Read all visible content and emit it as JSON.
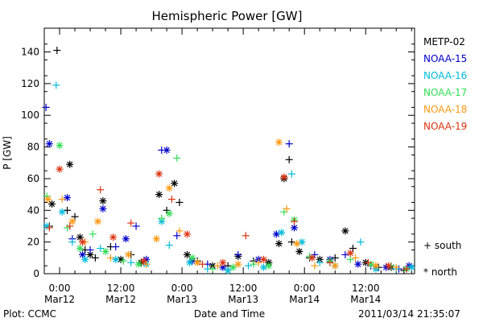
{
  "chart_data": {
    "type": "scatter",
    "title": "Hemispheric Power [GW]",
    "ylabel": "P [GW]",
    "xlabel": "Date and Time",
    "ylim": [
      0,
      155
    ],
    "xlim": [
      "2011-03-11 21:00",
      "2011-03-14 21:35"
    ],
    "yticks": [
      0,
      20,
      40,
      60,
      80,
      100,
      120,
      140
    ],
    "xticks": [
      {
        "time": "2011-03-12 00:00",
        "label": [
          "0:00",
          "Mar12"
        ]
      },
      {
        "time": "2011-03-12 12:00",
        "label": [
          "12:00",
          "Mar12"
        ]
      },
      {
        "time": "2011-03-13 00:00",
        "label": [
          "0:00",
          "Mar13"
        ]
      },
      {
        "time": "2011-03-13 12:00",
        "label": [
          "12:00",
          "Mar13"
        ]
      },
      {
        "time": "2011-03-14 00:00",
        "label": [
          "0:00",
          "Mar14"
        ]
      },
      {
        "time": "2011-03-14 12:00",
        "label": [
          "12:00",
          "Mar14"
        ]
      }
    ],
    "marker_legend": {
      "south": "+ south",
      "north": "* north"
    },
    "series": [
      {
        "name": "METP-02",
        "color": "#000000",
        "points": [
          {
            "t": "2011-03-11 22:00",
            "v": 30,
            "m": "+"
          },
          {
            "t": "2011-03-11 22:30",
            "v": 44,
            "m": "*"
          },
          {
            "t": "2011-03-11 23:30",
            "v": 141,
            "m": "+"
          },
          {
            "t": "2011-03-12 01:30",
            "v": 40,
            "m": "+"
          },
          {
            "t": "2011-03-12 02:00",
            "v": 69,
            "m": "*"
          },
          {
            "t": "2011-03-12 03:00",
            "v": 36,
            "m": "+"
          },
          {
            "t": "2011-03-12 04:00",
            "v": 23,
            "m": "*"
          },
          {
            "t": "2011-03-12 05:00",
            "v": 15,
            "m": "+"
          },
          {
            "t": "2011-03-12 06:00",
            "v": 12,
            "m": "*"
          },
          {
            "t": "2011-03-12 07:00",
            "v": 10,
            "m": "+"
          },
          {
            "t": "2011-03-12 08:30",
            "v": 46,
            "m": "*"
          },
          {
            "t": "2011-03-12 10:00",
            "v": 17,
            "m": "+"
          },
          {
            "t": "2011-03-12 12:00",
            "v": 9,
            "m": "*"
          },
          {
            "t": "2011-03-12 14:00",
            "v": 12,
            "m": "+"
          },
          {
            "t": "2011-03-12 16:00",
            "v": 7,
            "m": "*"
          },
          {
            "t": "2011-03-12 19:30",
            "v": 50,
            "m": "*"
          },
          {
            "t": "2011-03-12 21:00",
            "v": 40,
            "m": "+"
          },
          {
            "t": "2011-03-12 22:30",
            "v": 57,
            "m": "*"
          },
          {
            "t": "2011-03-12 23:30",
            "v": 45,
            "m": "+"
          },
          {
            "t": "2011-03-13 01:00",
            "v": 12,
            "m": "*"
          },
          {
            "t": "2011-03-13 03:00",
            "v": 8,
            "m": "+"
          },
          {
            "t": "2011-03-13 06:00",
            "v": 5,
            "m": "*"
          },
          {
            "t": "2011-03-13 09:00",
            "v": 5,
            "m": "+"
          },
          {
            "t": "2011-03-13 11:00",
            "v": 11,
            "m": "*"
          },
          {
            "t": "2011-03-13 14:00",
            "v": 8,
            "m": "+"
          },
          {
            "t": "2011-03-13 17:00",
            "v": 7,
            "m": "*"
          },
          {
            "t": "2011-03-13 19:00",
            "v": 19,
            "m": "*"
          },
          {
            "t": "2011-03-13 20:00",
            "v": 60,
            "m": "*"
          },
          {
            "t": "2011-03-13 21:00",
            "v": 72,
            "m": "+"
          },
          {
            "t": "2011-03-13 21:30",
            "v": 20,
            "m": "+"
          },
          {
            "t": "2011-03-13 23:00",
            "v": 14,
            "m": "*"
          },
          {
            "t": "2011-03-14 01:00",
            "v": 10,
            "m": "+"
          },
          {
            "t": "2011-03-14 03:00",
            "v": 9,
            "m": "*"
          },
          {
            "t": "2011-03-14 06:00",
            "v": 10,
            "m": "+"
          },
          {
            "t": "2011-03-14 08:00",
            "v": 27,
            "m": "*"
          },
          {
            "t": "2011-03-14 09:30",
            "v": 16,
            "m": "+"
          },
          {
            "t": "2011-03-14 12:00",
            "v": 7,
            "m": "*"
          },
          {
            "t": "2011-03-14 14:30",
            "v": 4,
            "m": "+"
          },
          {
            "t": "2011-03-14 17:00",
            "v": 4,
            "m": "*"
          },
          {
            "t": "2011-03-14 19:30",
            "v": 2,
            "m": "+"
          }
        ]
      },
      {
        "name": "NOAA-15",
        "color": "#0000cc",
        "points": [
          {
            "t": "2011-03-11 21:20",
            "v": 105,
            "m": "+"
          },
          {
            "t": "2011-03-11 22:00",
            "v": 82,
            "m": "*"
          },
          {
            "t": "2011-03-12 01:30",
            "v": 48,
            "m": "*"
          },
          {
            "t": "2011-03-12 02:30",
            "v": 22,
            "m": "+"
          },
          {
            "t": "2011-03-12 04:30",
            "v": 12,
            "m": "*"
          },
          {
            "t": "2011-03-12 06:00",
            "v": 15,
            "m": "+"
          },
          {
            "t": "2011-03-12 08:30",
            "v": 41,
            "m": "*"
          },
          {
            "t": "2011-03-12 11:00",
            "v": 17,
            "m": "+"
          },
          {
            "t": "2011-03-12 13:00",
            "v": 22,
            "m": "*"
          },
          {
            "t": "2011-03-12 15:00",
            "v": 30,
            "m": "+"
          },
          {
            "t": "2011-03-12 17:00",
            "v": 9,
            "m": "*"
          },
          {
            "t": "2011-03-12 20:00",
            "v": 78,
            "m": "+"
          },
          {
            "t": "2011-03-12 21:00",
            "v": 78,
            "m": "*"
          },
          {
            "t": "2011-03-12 23:00",
            "v": 24,
            "m": "+"
          },
          {
            "t": "2011-03-13 02:00",
            "v": 8,
            "m": "*"
          },
          {
            "t": "2011-03-13 05:00",
            "v": 6,
            "m": "+"
          },
          {
            "t": "2011-03-13 08:00",
            "v": 4,
            "m": "*"
          },
          {
            "t": "2011-03-13 11:00",
            "v": 12,
            "m": "+"
          },
          {
            "t": "2011-03-13 15:00",
            "v": 9,
            "m": "*"
          },
          {
            "t": "2011-03-13 18:30",
            "v": 25,
            "m": "*"
          },
          {
            "t": "2011-03-13 21:00",
            "v": 82,
            "m": "+"
          },
          {
            "t": "2011-03-13 22:00",
            "v": 29,
            "m": "*"
          },
          {
            "t": "2011-03-14 02:00",
            "v": 12,
            "m": "+"
          },
          {
            "t": "2011-03-14 05:00",
            "v": 9,
            "m": "*"
          },
          {
            "t": "2011-03-14 08:00",
            "v": 12,
            "m": "+"
          },
          {
            "t": "2011-03-14 10:30",
            "v": 6,
            "m": "*"
          },
          {
            "t": "2011-03-14 13:00",
            "v": 5,
            "m": "+"
          },
          {
            "t": "2011-03-14 16:00",
            "v": 4,
            "m": "*"
          },
          {
            "t": "2011-03-14 18:30",
            "v": 3,
            "m": "+"
          },
          {
            "t": "2011-03-14 20:30",
            "v": 5,
            "m": "*"
          }
        ]
      },
      {
        "name": "NOAA-16",
        "color": "#00bbdd",
        "points": [
          {
            "t": "2011-03-11 21:30",
            "v": 30,
            "m": "*"
          },
          {
            "t": "2011-03-11 23:20",
            "v": 119,
            "m": "+"
          },
          {
            "t": "2011-03-12 00:30",
            "v": 39,
            "m": "*"
          },
          {
            "t": "2011-03-12 02:30",
            "v": 20,
            "m": "+"
          },
          {
            "t": "2011-03-12 05:00",
            "v": 9,
            "m": "*"
          },
          {
            "t": "2011-03-12 08:00",
            "v": 16,
            "m": "+"
          },
          {
            "t": "2011-03-12 11:00",
            "v": 9,
            "m": "*"
          },
          {
            "t": "2011-03-12 14:00",
            "v": 7,
            "m": "+"
          },
          {
            "t": "2011-03-12 17:00",
            "v": 6,
            "m": "*"
          },
          {
            "t": "2011-03-12 20:00",
            "v": 33,
            "m": "*"
          },
          {
            "t": "2011-03-12 21:30",
            "v": 18,
            "m": "+"
          },
          {
            "t": "2011-03-13 01:30",
            "v": 7,
            "m": "*"
          },
          {
            "t": "2011-03-13 05:00",
            "v": 3,
            "m": "+"
          },
          {
            "t": "2011-03-13 09:00",
            "v": 2,
            "m": "*"
          },
          {
            "t": "2011-03-13 13:00",
            "v": 5,
            "m": "+"
          },
          {
            "t": "2011-03-13 16:00",
            "v": 4,
            "m": "*"
          },
          {
            "t": "2011-03-13 19:30",
            "v": 26,
            "m": "*"
          },
          {
            "t": "2011-03-13 21:30",
            "v": 63,
            "m": "+"
          },
          {
            "t": "2011-03-13 23:30",
            "v": 20,
            "m": "*"
          },
          {
            "t": "2011-03-14 03:00",
            "v": 7,
            "m": "+"
          },
          {
            "t": "2011-03-14 06:00",
            "v": 5,
            "m": "*"
          },
          {
            "t": "2011-03-14 11:00",
            "v": 20,
            "m": "+"
          },
          {
            "t": "2011-03-14 14:00",
            "v": 3,
            "m": "*"
          },
          {
            "t": "2011-03-14 18:00",
            "v": 3,
            "m": "+"
          },
          {
            "t": "2011-03-14 21:00",
            "v": 4,
            "m": "*"
          }
        ]
      },
      {
        "name": "NOAA-17",
        "color": "#33dd55",
        "points": [
          {
            "t": "2011-03-11 21:30",
            "v": 49,
            "m": "+"
          },
          {
            "t": "2011-03-12 00:00",
            "v": 81,
            "m": "*"
          },
          {
            "t": "2011-03-12 01:30",
            "v": 29,
            "m": "+"
          },
          {
            "t": "2011-03-12 04:00",
            "v": 16,
            "m": "*"
          },
          {
            "t": "2011-03-12 06:30",
            "v": 25,
            "m": "+"
          },
          {
            "t": "2011-03-12 09:00",
            "v": 14,
            "m": "*"
          },
          {
            "t": "2011-03-12 12:30",
            "v": 8,
            "m": "+"
          },
          {
            "t": "2011-03-12 15:30",
            "v": 6,
            "m": "*"
          },
          {
            "t": "2011-03-12 20:00",
            "v": 35,
            "m": "+"
          },
          {
            "t": "2011-03-12 21:30",
            "v": 38,
            "m": "*"
          },
          {
            "t": "2011-03-12 23:00",
            "v": 73,
            "m": "+"
          },
          {
            "t": "2011-03-13 02:00",
            "v": 10,
            "m": "*"
          },
          {
            "t": "2011-03-13 06:00",
            "v": 3,
            "m": "+"
          },
          {
            "t": "2011-03-13 10:00",
            "v": 4,
            "m": "*"
          },
          {
            "t": "2011-03-13 14:00",
            "v": 6,
            "m": "+"
          },
          {
            "t": "2011-03-13 17:00",
            "v": 5,
            "m": "*"
          },
          {
            "t": "2011-03-13 20:00",
            "v": 39,
            "m": "+"
          },
          {
            "t": "2011-03-13 22:00",
            "v": 34,
            "m": "*"
          },
          {
            "t": "2011-03-14 01:00",
            "v": 11,
            "m": "+"
          },
          {
            "t": "2011-03-14 05:00",
            "v": 8,
            "m": "*"
          },
          {
            "t": "2011-03-14 09:00",
            "v": 9,
            "m": "+"
          },
          {
            "t": "2011-03-14 13:00",
            "v": 6,
            "m": "*"
          },
          {
            "t": "2011-03-14 17:00",
            "v": 5,
            "m": "+"
          },
          {
            "t": "2011-03-14 20:00",
            "v": 3,
            "m": "*"
          }
        ]
      },
      {
        "name": "NOAA-18",
        "color": "#ff9911",
        "points": [
          {
            "t": "2011-03-11 21:45",
            "v": 47,
            "m": "*"
          },
          {
            "t": "2011-03-12 00:30",
            "v": 47,
            "m": "+"
          },
          {
            "t": "2011-03-12 02:30",
            "v": 33,
            "m": "*"
          },
          {
            "t": "2011-03-12 05:00",
            "v": 20,
            "m": "+"
          },
          {
            "t": "2011-03-12 07:30",
            "v": 33,
            "m": "*"
          },
          {
            "t": "2011-03-12 10:00",
            "v": 10,
            "m": "+"
          },
          {
            "t": "2011-03-12 13:30",
            "v": 12,
            "m": "*"
          },
          {
            "t": "2011-03-12 17:00",
            "v": 6,
            "m": "+"
          },
          {
            "t": "2011-03-12 19:00",
            "v": 22,
            "m": "*"
          },
          {
            "t": "2011-03-12 21:30",
            "v": 54,
            "m": "*"
          },
          {
            "t": "2011-03-12 23:30",
            "v": 27,
            "m": "+"
          },
          {
            "t": "2011-03-13 03:00",
            "v": 7,
            "m": "*"
          },
          {
            "t": "2011-03-13 07:00",
            "v": 5,
            "m": "+"
          },
          {
            "t": "2011-03-13 11:00",
            "v": 6,
            "m": "*"
          },
          {
            "t": "2011-03-13 15:00",
            "v": 7,
            "m": "+"
          },
          {
            "t": "2011-03-13 19:00",
            "v": 83,
            "m": "*"
          },
          {
            "t": "2011-03-13 20:30",
            "v": 41,
            "m": "+"
          },
          {
            "t": "2011-03-13 22:30",
            "v": 19,
            "m": "*"
          },
          {
            "t": "2011-03-14 02:00",
            "v": 5,
            "m": "+"
          },
          {
            "t": "2011-03-14 06:00",
            "v": 5,
            "m": "*"
          },
          {
            "t": "2011-03-14 10:00",
            "v": 10,
            "m": "+"
          },
          {
            "t": "2011-03-14 14:00",
            "v": 5,
            "m": "*"
          },
          {
            "t": "2011-03-14 18:00",
            "v": 4,
            "m": "+"
          }
        ]
      },
      {
        "name": "NOAA-19",
        "color": "#dd3311",
        "points": [
          {
            "t": "2011-03-11 22:00",
            "v": 29,
            "m": "+"
          },
          {
            "t": "2011-03-12 00:00",
            "v": 66,
            "m": "*"
          },
          {
            "t": "2011-03-12 02:00",
            "v": 30,
            "m": "+"
          },
          {
            "t": "2011-03-12 04:30",
            "v": 20,
            "m": "*"
          },
          {
            "t": "2011-03-12 08:00",
            "v": 53,
            "m": "+"
          },
          {
            "t": "2011-03-12 10:30",
            "v": 23,
            "m": "*"
          },
          {
            "t": "2011-03-12 14:00",
            "v": 32,
            "m": "+"
          },
          {
            "t": "2011-03-12 16:30",
            "v": 8,
            "m": "*"
          },
          {
            "t": "2011-03-12 19:30",
            "v": 63,
            "m": "*"
          },
          {
            "t": "2011-03-12 22:00",
            "v": 47,
            "m": "+"
          },
          {
            "t": "2011-03-13 01:00",
            "v": 25,
            "m": "*"
          },
          {
            "t": "2011-03-13 04:00",
            "v": 6,
            "m": "+"
          },
          {
            "t": "2011-03-13 08:00",
            "v": 7,
            "m": "*"
          },
          {
            "t": "2011-03-13 12:30",
            "v": 24,
            "m": "+"
          },
          {
            "t": "2011-03-13 16:00",
            "v": 9,
            "m": "*"
          },
          {
            "t": "2011-03-13 20:00",
            "v": 61,
            "m": "*"
          },
          {
            "t": "2011-03-13 22:00",
            "v": 33,
            "m": "+"
          },
          {
            "t": "2011-03-14 01:30",
            "v": 10,
            "m": "*"
          },
          {
            "t": "2011-03-14 05:00",
            "v": 7,
            "m": "+"
          },
          {
            "t": "2011-03-14 09:00",
            "v": 13,
            "m": "*"
          },
          {
            "t": "2011-03-14 12:30",
            "v": 7,
            "m": "+"
          },
          {
            "t": "2011-03-14 16:30",
            "v": 5,
            "m": "*"
          },
          {
            "t": "2011-03-14 20:00",
            "v": 3,
            "m": "+"
          }
        ]
      }
    ]
  },
  "footer": {
    "plot_credit": "Plot: CCMC",
    "timestamp": "2011/03/14 21:35:07"
  }
}
